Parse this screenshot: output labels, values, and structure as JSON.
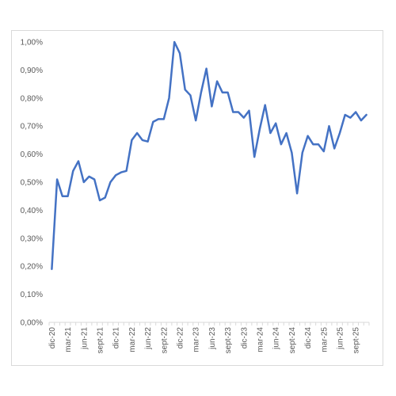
{
  "chart_data": {
    "type": "line",
    "title": "",
    "xlabel": "",
    "ylabel": "",
    "ylim": [
      0,
      1
    ],
    "yticks": [
      0,
      0.1,
      0.2,
      0.3,
      0.4,
      0.5,
      0.6,
      0.7,
      0.8,
      0.9,
      1.0
    ],
    "ytick_labels": [
      "0,00%",
      "0,10%",
      "0,20%",
      "0,30%",
      "0,40%",
      "0,50%",
      "0,60%",
      "0,70%",
      "0,80%",
      "0,90%",
      "1,00%"
    ],
    "x_tick_labels": [
      {
        "index": 0,
        "label": "dic-20"
      },
      {
        "index": 3,
        "label": "mar-21"
      },
      {
        "index": 6,
        "label": "jun-21"
      },
      {
        "index": 9,
        "label": "sept-21"
      },
      {
        "index": 12,
        "label": "dic-21"
      },
      {
        "index": 15,
        "label": "mar-22"
      },
      {
        "index": 18,
        "label": "jun-22"
      },
      {
        "index": 21,
        "label": "sept-22"
      },
      {
        "index": 24,
        "label": "dic-22"
      },
      {
        "index": 27,
        "label": "mar-23"
      },
      {
        "index": 30,
        "label": "jun-23"
      },
      {
        "index": 33,
        "label": "sept-23"
      },
      {
        "index": 36,
        "label": "dic-23"
      },
      {
        "index": 39,
        "label": "mar-24"
      },
      {
        "index": 42,
        "label": "jun-24"
      },
      {
        "index": 45,
        "label": "sept-24"
      },
      {
        "index": 48,
        "label": "dic-24"
      },
      {
        "index": 51,
        "label": "mar-25"
      },
      {
        "index": 54,
        "label": "jun-25"
      },
      {
        "index": 57,
        "label": "sept-25"
      }
    ],
    "grid": false,
    "series": [
      {
        "color": "#4472c4",
        "values": [
          0.19,
          0.51,
          0.45,
          0.45,
          0.54,
          0.575,
          0.5,
          0.52,
          0.51,
          0.435,
          0.445,
          0.5,
          0.525,
          0.535,
          0.54,
          0.65,
          0.675,
          0.65,
          0.645,
          0.715,
          0.725,
          0.725,
          0.8,
          1.0,
          0.96,
          0.83,
          0.81,
          0.72,
          0.82,
          0.905,
          0.77,
          0.86,
          0.82,
          0.82,
          0.75,
          0.75,
          0.73,
          0.755,
          0.59,
          0.69,
          0.775,
          0.675,
          0.71,
          0.635,
          0.675,
          0.605,
          0.46,
          0.605,
          0.665,
          0.635,
          0.635,
          0.61,
          0.7,
          0.62,
          0.675,
          0.74,
          0.73,
          0.75,
          0.72,
          0.74
        ]
      }
    ]
  }
}
